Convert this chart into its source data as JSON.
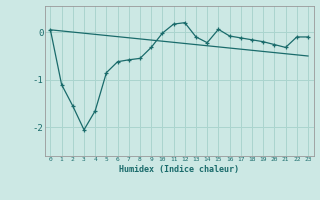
{
  "xlabel": "Humidex (Indice chaleur)",
  "background_color": "#cce8e4",
  "grid_color": "#aad4ce",
  "line_color": "#1a6b6b",
  "xlim": [
    -0.5,
    23.5
  ],
  "ylim": [
    -2.6,
    0.55
  ],
  "yticks": [
    0,
    -1,
    -2
  ],
  "xticks": [
    0,
    1,
    2,
    3,
    4,
    5,
    6,
    7,
    8,
    9,
    10,
    11,
    12,
    13,
    14,
    15,
    16,
    17,
    18,
    19,
    20,
    21,
    22,
    23
  ],
  "series1_x": [
    0,
    1,
    2,
    3,
    4,
    5,
    6,
    7,
    8,
    9,
    10,
    11,
    12,
    13,
    14,
    15,
    16,
    17,
    18,
    19,
    20,
    21,
    22,
    23
  ],
  "series1_y": [
    0.05,
    -1.1,
    -1.55,
    -2.05,
    -1.65,
    -0.85,
    -0.62,
    -0.58,
    -0.55,
    -0.32,
    -0.02,
    0.17,
    0.2,
    -0.1,
    -0.22,
    0.06,
    -0.08,
    -0.12,
    -0.16,
    -0.2,
    -0.26,
    -0.32,
    -0.1,
    -0.1
  ],
  "series2_x": [
    0,
    23
  ],
  "series2_y": [
    0.05,
    -0.5
  ],
  "figwidth": 3.2,
  "figheight": 2.0,
  "dpi": 100
}
